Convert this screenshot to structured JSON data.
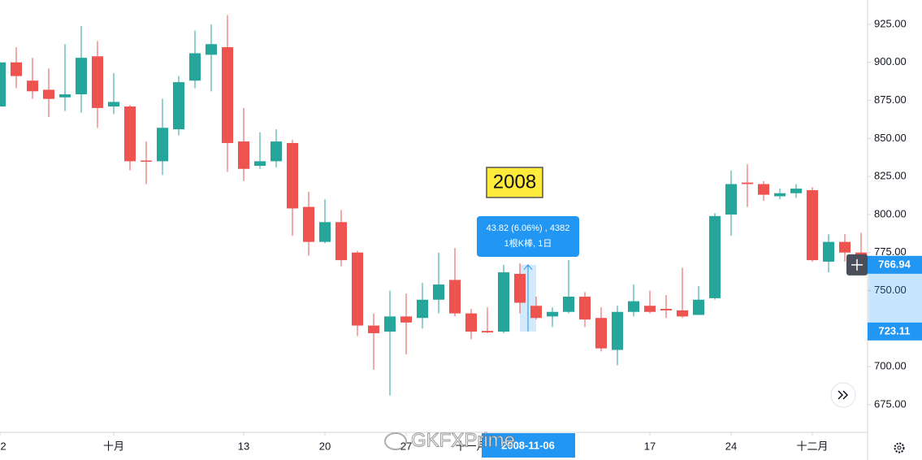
{
  "chart_data": {
    "type": "candlestick",
    "open": [
      871,
      900,
      888,
      882,
      877,
      879,
      904,
      871,
      871,
      835.5,
      835,
      856,
      888,
      905,
      910,
      848,
      832,
      835,
      847,
      805,
      782,
      795,
      775,
      727,
      723,
      733,
      732,
      744,
      757,
      735,
      723.5,
      723,
      761,
      740,
      733,
      736,
      746,
      732,
      711,
      736,
      740,
      738,
      737,
      734,
      745,
      800,
      821,
      820,
      812,
      814,
      816,
      769,
      782,
      775
    ],
    "high": [
      900,
      910,
      903,
      896,
      912,
      924,
      914,
      893,
      872,
      848,
      876,
      891,
      921,
      925,
      931,
      870,
      854,
      856,
      849,
      815,
      810,
      803,
      776,
      735,
      750,
      748,
      755,
      775,
      778,
      738,
      739,
      767,
      768,
      746,
      739,
      770,
      749,
      739,
      740,
      754,
      750,
      747,
      765,
      753,
      801,
      829,
      833,
      822,
      817,
      820,
      818,
      787,
      787,
      788
    ],
    "low": [
      871,
      883,
      876,
      864,
      868,
      867,
      857,
      866,
      829,
      820,
      826,
      852,
      883,
      881,
      828,
      822,
      830,
      831,
      786,
      773,
      781,
      766,
      720,
      698,
      681,
      708,
      725,
      735,
      733,
      718,
      722,
      722,
      735,
      731,
      726,
      735,
      726,
      710,
      701,
      733,
      735,
      732,
      732,
      734,
      744,
      786,
      805,
      809,
      810,
      811,
      769,
      762,
      769,
      766
    ],
    "close": [
      900,
      891,
      881,
      876,
      879,
      903,
      870,
      874,
      835,
      835,
      857,
      887,
      906,
      912,
      847,
      830,
      835,
      848,
      804,
      782,
      795,
      770,
      727,
      722,
      733,
      729,
      744,
      754,
      735,
      723,
      722.5,
      762,
      742,
      732,
      736,
      746,
      731,
      712,
      736,
      743,
      736,
      737,
      733,
      744,
      799,
      820,
      820,
      813,
      814,
      817,
      770,
      782,
      775,
      767
    ],
    "up_color": "#26a69a",
    "down_color": "#ef5350",
    "ylim": [
      656.8,
      941
    ],
    "yticks": [
      {
        "value": 675,
        "label": "675.00"
      },
      {
        "value": 700,
        "label": "700.00"
      },
      {
        "value": 725,
        "label": "725.00"
      },
      {
        "value": 750,
        "label": "750.00"
      },
      {
        "value": 775,
        "label": "775.00"
      },
      {
        "value": 800,
        "label": "800.00"
      },
      {
        "value": 825,
        "label": "825.00"
      },
      {
        "value": 850,
        "label": "850.00"
      },
      {
        "value": 875,
        "label": "875.00"
      },
      {
        "value": 900,
        "label": "900.00"
      },
      {
        "value": 925,
        "label": "925.00"
      }
    ],
    "xticks": [
      {
        "value": 0,
        "label": "2"
      },
      {
        "value": 7,
        "label": "十月"
      },
      {
        "value": 15,
        "label": "13"
      },
      {
        "value": 20,
        "label": "20"
      },
      {
        "value": 25,
        "label": "27"
      },
      {
        "value": 29,
        "label": "十一月"
      },
      {
        "value": 40,
        "label": "17"
      },
      {
        "value": 45,
        "label": "24"
      },
      {
        "value": 50,
        "label": "十二月"
      }
    ],
    "price_markers": [
      766.94,
      723.11
    ],
    "crosshair_date": "2008-11-06",
    "measure_text": "43.82 (6.06%) , 4382",
    "measure_sub": "1根K棒, 1日",
    "annotation": "2008",
    "watermark": "GKFXPrime"
  }
}
